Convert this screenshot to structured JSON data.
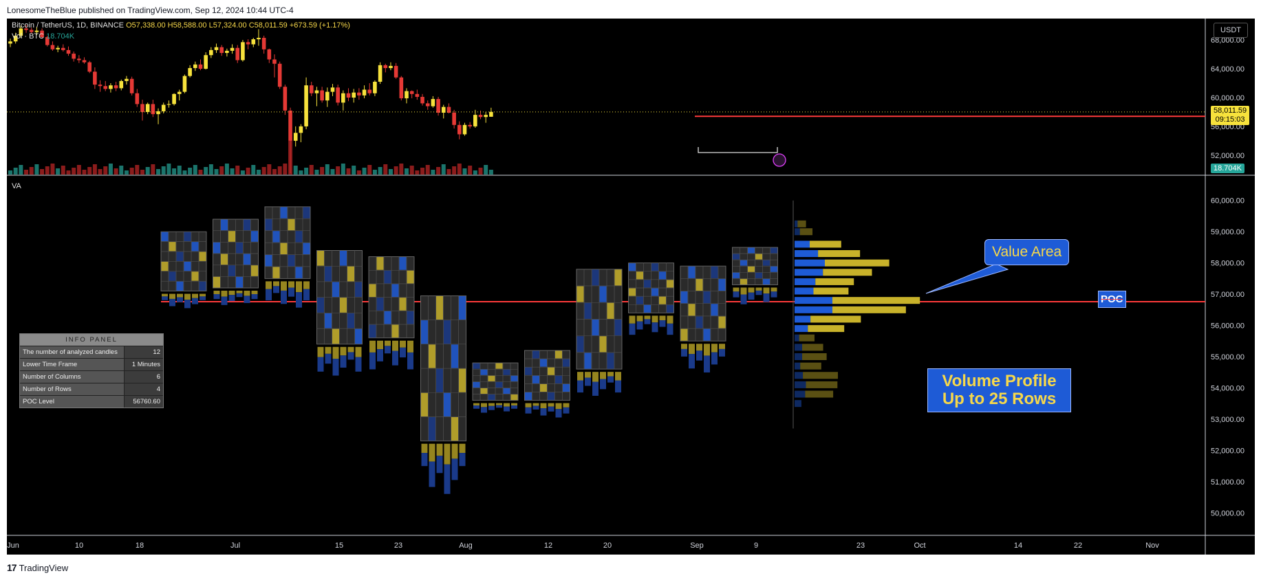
{
  "header": {
    "text": "LonesomeTheBlue published on TradingView.com, Sep 12, 2024 10:44 UTC-4"
  },
  "legend": {
    "symbol": "Bitcoin / TetherUS, 1D, BINANCE",
    "open": "O57,338.00",
    "high": "H58,588.00",
    "low": "L57,324.00",
    "close": "C58,011.59",
    "change": "+673.59 (+1.17%)",
    "vol_label": "Vol · BTC",
    "vol_value": "18.704K",
    "va_label": "VA"
  },
  "currency_button": "USDT",
  "price_badge": {
    "price": "58,011.59",
    "countdown": "09:15:03"
  },
  "volume_badge": "18.704K",
  "top_axis_ticks": [
    "68,000.00",
    "64,000.00",
    "60,000.00",
    "56,000.00",
    "52,000.00"
  ],
  "bottom_axis_ticks": [
    "60,000.00",
    "59,000.00",
    "58,000.00",
    "57,000.00",
    "56,000.00",
    "55,000.00",
    "54,000.00",
    "53,000.00",
    "52,000.00",
    "51,000.00",
    "50,000.00"
  ],
  "time_axis_ticks": [
    "Jun",
    "10",
    "18",
    "Jul",
    "15",
    "23",
    "Aug",
    "12",
    "20",
    "Sep",
    "9",
    "23",
    "Oct",
    "14",
    "22",
    "Nov"
  ],
  "info_panel": {
    "title": "INFO PANEL",
    "rows": [
      {
        "label": "The number of analyzed candles",
        "value": "12"
      },
      {
        "label": "Lower Time Frame",
        "value": "1 Minutes"
      },
      {
        "label": "Number of Columns",
        "value": "6"
      },
      {
        "label": "Number of Rows",
        "value": "4"
      },
      {
        "label": "POC Level",
        "value": "56760.60"
      }
    ]
  },
  "annotations": {
    "value_area": "Value Area",
    "poc": "POC",
    "volume_profile_line1": "Volume Profile",
    "volume_profile_line2": "Up to 25 Rows"
  },
  "footer": {
    "brand": "TradingView"
  },
  "colors": {
    "up": "#f7e23c",
    "down": "#e53935",
    "poc_line": "#ff3b3b",
    "vol_up": "#26a69a",
    "vol_down": "#c62828",
    "profile_blue": "#1e5bd6",
    "profile_yellow": "#c8b22a"
  },
  "chart_data": [
    {
      "type": "candlestick",
      "title": "Bitcoin / TetherUS, 1D, BINANCE",
      "ylim": [
        49500,
        70500
      ],
      "y_ticks": [
        52000,
        56000,
        60000,
        64000,
        68000
      ],
      "x_ticks": [
        "Jun",
        "10",
        "18",
        "Jul",
        "15",
        "23",
        "Aug",
        "12",
        "20",
        "Sep",
        "9",
        "23",
        "Oct",
        "14",
        "22",
        "Nov"
      ],
      "candles": [
        [
          67500,
          68200,
          67000,
          67800
        ],
        [
          67800,
          69000,
          67500,
          68600
        ],
        [
          68600,
          70000,
          68300,
          69600
        ],
        [
          69600,
          70100,
          69000,
          69400
        ],
        [
          69400,
          69700,
          68900,
          69100
        ],
        [
          69100,
          69800,
          68700,
          69300
        ],
        [
          69300,
          69600,
          68200,
          68400
        ],
        [
          68400,
          68600,
          67100,
          67300
        ],
        [
          67300,
          67800,
          66500,
          66700
        ],
        [
          66700,
          67200,
          66300,
          66900
        ],
        [
          66900,
          67400,
          66400,
          66600
        ],
        [
          66600,
          67100,
          65800,
          66100
        ],
        [
          66100,
          66400,
          65000,
          65400
        ],
        [
          65400,
          65900,
          64800,
          65200
        ],
        [
          65200,
          65600,
          64700,
          64900
        ],
        [
          64900,
          65100,
          63400,
          63600
        ],
        [
          63600,
          64200,
          61200,
          61800
        ],
        [
          61800,
          62400,
          60800,
          61600
        ],
        [
          61600,
          62300,
          60900,
          61200
        ],
        [
          61200,
          62000,
          60700,
          61700
        ],
        [
          61700,
          62200,
          60900,
          61300
        ],
        [
          61300,
          62500,
          61000,
          62300
        ],
        [
          62300,
          63000,
          61800,
          62600
        ],
        [
          62600,
          62900,
          60300,
          60600
        ],
        [
          60600,
          61200,
          58700,
          59100
        ],
        [
          59100,
          59700,
          56800,
          58000
        ],
        [
          58000,
          59300,
          57700,
          59100
        ],
        [
          59100,
          59700,
          57300,
          57700
        ],
        [
          57700,
          58500,
          56300,
          58100
        ],
        [
          58100,
          59300,
          57800,
          59000
        ],
        [
          59000,
          59600,
          58600,
          59100
        ],
        [
          59100,
          60600,
          58900,
          60500
        ],
        [
          60500,
          61100,
          59600,
          60800
        ],
        [
          60800,
          63200,
          60600,
          63000
        ],
        [
          63000,
          64500,
          62800,
          64100
        ],
        [
          64100,
          65000,
          63700,
          64600
        ],
        [
          64600,
          65300,
          63800,
          64000
        ],
        [
          64000,
          66300,
          63900,
          65900
        ],
        [
          65900,
          67000,
          65500,
          66600
        ],
        [
          66600,
          67500,
          66200,
          67000
        ],
        [
          67000,
          67300,
          65800,
          66200
        ],
        [
          66200,
          66800,
          65700,
          66500
        ],
        [
          66500,
          67400,
          66100,
          66900
        ],
        [
          66900,
          67300,
          64800,
          65200
        ],
        [
          65200,
          68000,
          65000,
          67700
        ],
        [
          67700,
          68100,
          66700,
          67400
        ],
        [
          67400,
          68300,
          67000,
          68100
        ],
        [
          68100,
          69500,
          67200,
          68300
        ],
        [
          68300,
          68600,
          66100,
          66700
        ],
        [
          66700,
          66800,
          64800,
          65300
        ],
        [
          65300,
          66000,
          62800,
          64700
        ],
        [
          64700,
          65000,
          61200,
          61500
        ],
        [
          61500,
          61800,
          57600,
          58200
        ],
        [
          58200,
          58600,
          49500,
          54000
        ],
        [
          54000,
          56000,
          53200,
          55100
        ],
        [
          55100,
          56300,
          53800,
          56000
        ],
        [
          56000,
          62800,
          55600,
          61700
        ],
        [
          61700,
          62200,
          60200,
          60600
        ],
        [
          60600,
          61500,
          58800,
          61000
        ],
        [
          61000,
          61500,
          59300,
          59600
        ],
        [
          59600,
          61400,
          58700,
          60800
        ],
        [
          60800,
          61900,
          60200,
          61400
        ],
        [
          61400,
          61800,
          58900,
          59300
        ],
        [
          59300,
          61000,
          58200,
          60600
        ],
        [
          60600,
          61300,
          59500,
          60000
        ],
        [
          60000,
          61200,
          59300,
          60700
        ],
        [
          60700,
          61300,
          59700,
          60300
        ],
        [
          60300,
          61700,
          59900,
          61100
        ],
        [
          61100,
          62000,
          60300,
          60600
        ],
        [
          60600,
          62400,
          60200,
          62200
        ],
        [
          62200,
          64900,
          61900,
          64500
        ],
        [
          64500,
          64700,
          63500,
          64100
        ],
        [
          64100,
          64900,
          63800,
          64400
        ],
        [
          64400,
          64800,
          62600,
          62800
        ],
        [
          62800,
          63000,
          59600,
          59900
        ],
        [
          59900,
          61300,
          59200,
          60900
        ],
        [
          60900,
          61000,
          59900,
          60500
        ],
        [
          60500,
          61100,
          59700,
          60100
        ],
        [
          60100,
          60500,
          58900,
          59200
        ],
        [
          59200,
          59600,
          58300,
          58800
        ],
        [
          58800,
          60200,
          58600,
          59800
        ],
        [
          59800,
          60100,
          57500,
          57900
        ],
        [
          57900,
          59000,
          57100,
          58700
        ],
        [
          58700,
          59200,
          57800,
          57900
        ],
        [
          57900,
          58300,
          55700,
          56200
        ],
        [
          56200,
          56700,
          54200,
          54900
        ],
        [
          54900,
          56500,
          54700,
          56200
        ],
        [
          56200,
          56600,
          55700,
          56000
        ],
        [
          56000,
          58300,
          55800,
          57600
        ],
        [
          57600,
          58200,
          57000,
          57300
        ],
        [
          57300,
          58000,
          56500,
          57600
        ],
        [
          57338,
          58588,
          57324,
          58011.59
        ]
      ],
      "volume_label": "Vol · BTC",
      "last_volume": "18.704K"
    },
    {
      "type": "volume_profile",
      "title": "VA",
      "ylim": [
        49500,
        60500
      ],
      "y_ticks": [
        50000,
        51000,
        52000,
        53000,
        54000,
        55000,
        56000,
        57000,
        58000,
        59000,
        60000
      ],
      "poc_level": 56760.6,
      "analyzed_candles": 12,
      "lower_time_frame": "1 Minutes",
      "columns": 6,
      "rows": 4,
      "profile_rows": [
        {
          "price": 59250,
          "blue": 8,
          "yellow": 12
        },
        {
          "price": 59000,
          "blue": 14,
          "yellow": 18
        },
        {
          "price": 58600,
          "blue": 40,
          "yellow": 45
        },
        {
          "price": 58300,
          "blue": 62,
          "yellow": 60
        },
        {
          "price": 58000,
          "blue": 80,
          "yellow": 92
        },
        {
          "price": 57700,
          "blue": 75,
          "yellow": 70
        },
        {
          "price": 57400,
          "blue": 55,
          "yellow": 55
        },
        {
          "price": 57100,
          "blue": 50,
          "yellow": 50
        },
        {
          "price": 56800,
          "blue": 100,
          "yellow": 125
        },
        {
          "price": 56500,
          "blue": 100,
          "yellow": 105
        },
        {
          "price": 56200,
          "blue": 42,
          "yellow": 72
        },
        {
          "price": 55900,
          "blue": 35,
          "yellow": 52
        },
        {
          "price": 55600,
          "blue": 12,
          "yellow": 22
        },
        {
          "price": 55300,
          "blue": 20,
          "yellow": 30
        },
        {
          "price": 55000,
          "blue": 20,
          "yellow": 35
        },
        {
          "price": 54700,
          "blue": 15,
          "yellow": 30
        },
        {
          "price": 54400,
          "blue": 22,
          "yellow": 50
        },
        {
          "price": 54100,
          "blue": 30,
          "yellow": 45
        },
        {
          "price": 53800,
          "blue": 28,
          "yellow": 40
        },
        {
          "price": 53500,
          "blue": 18,
          "yellow": 0
        }
      ],
      "footprints": [
        {
          "date": "Jun 21",
          "high": 59000,
          "low": 57100,
          "below": 56500
        },
        {
          "date": "Jun 28",
          "high": 59400,
          "low": 57200,
          "below": 56600
        },
        {
          "date": "Jul 5",
          "high": 59800,
          "low": 57500,
          "below": 56400
        },
        {
          "date": "Jul 12",
          "high": 58400,
          "low": 55400,
          "below": 54200
        },
        {
          "date": "Jul 19",
          "high": 58200,
          "low": 55600,
          "below": 54400
        },
        {
          "date": "Jul 26",
          "high": 56950,
          "low": 52300,
          "below": 50200
        },
        {
          "date": "Aug 2",
          "high": 54800,
          "low": 53600,
          "below": 53200
        },
        {
          "date": "Aug 9",
          "high": 55200,
          "low": 53600,
          "below": 53000
        },
        {
          "date": "Aug 16",
          "high": 57800,
          "low": 54600,
          "below": 53600
        },
        {
          "date": "Aug 23",
          "high": 58000,
          "low": 56400,
          "below": 55600
        },
        {
          "date": "Aug 30",
          "high": 57900,
          "low": 55500,
          "below": 54300
        },
        {
          "date": "Sep 6",
          "high": 58500,
          "low": 57300,
          "below": 56600
        }
      ]
    }
  ]
}
